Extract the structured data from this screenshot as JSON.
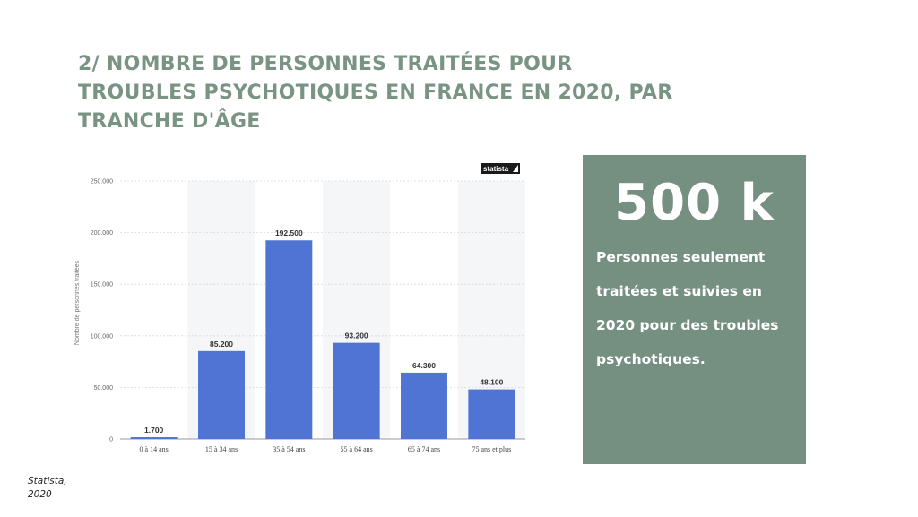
{
  "slide": {
    "title": "2/ NOMBRE DE PERSONNES TRAITÉES POUR TROUBLES PSYCHOTIQUES EN FRANCE EN 2020, PAR TRANCHE D'ÂGE"
  },
  "brand": "statista",
  "stat_box": {
    "value": "500 k",
    "description": "Personnes seulement traitées et suivies en 2020 pour des troubles psychotiques."
  },
  "source": "Statista, 2020",
  "colors": {
    "title": "#7a9484",
    "stat_box_bg": "#758f80",
    "bar": "#4f74d4"
  },
  "chart_data": {
    "type": "bar",
    "categories": [
      "0 à 14 ans",
      "15 à 34 ans",
      "35 à 54 ans",
      "55 à 64 ans",
      "65 à 74 ans",
      "75 ans et plus"
    ],
    "values": [
      1700,
      85200,
      192500,
      93200,
      64300,
      48100
    ],
    "value_labels": [
      "1.700",
      "85.200",
      "192.500",
      "93.200",
      "64.300",
      "48.100"
    ],
    "ylabel": "Nombre de personnes traitées",
    "ylim": [
      0,
      250000
    ],
    "yticks": [
      0,
      50000,
      100000,
      150000,
      200000,
      250000
    ],
    "ytick_labels": [
      "0",
      "50.000",
      "100.000",
      "150.000",
      "200.000",
      "250.000"
    ],
    "grid": true,
    "legend": false
  }
}
